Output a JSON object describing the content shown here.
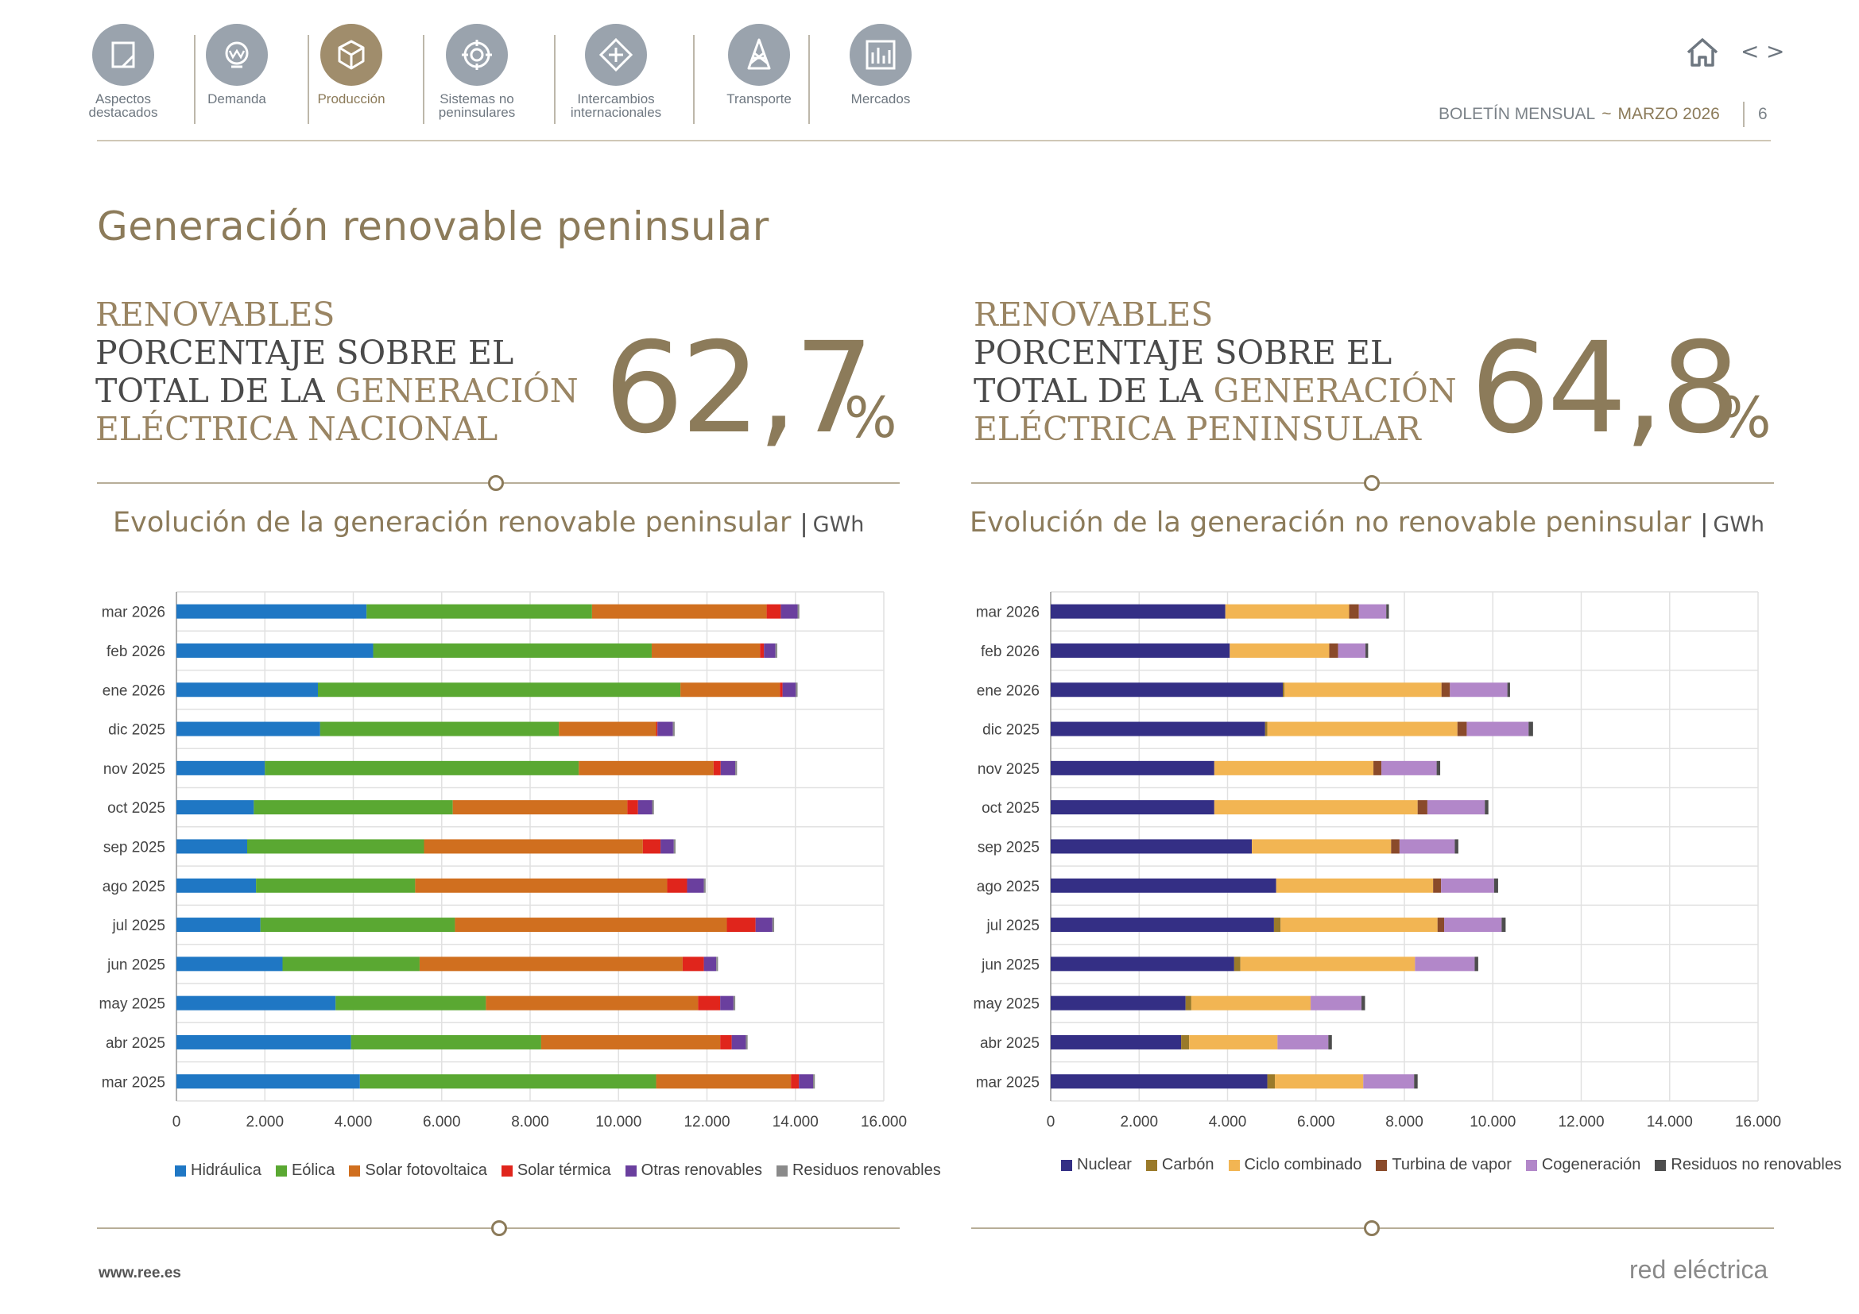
{
  "nav": {
    "items": [
      {
        "label_1": "Aspectos",
        "label_2": "destacados",
        "icon": "document-icon",
        "active": false
      },
      {
        "label_1": "Demanda",
        "label_2": "",
        "icon": "lightbulb-icon",
        "active": false
      },
      {
        "label_1": "Producción",
        "label_2": "",
        "icon": "cube-icon",
        "active": true
      },
      {
        "label_1": "Sistemas no",
        "label_2": "peninsulares",
        "icon": "islands-icon",
        "active": false
      },
      {
        "label_1": "Intercambios",
        "label_2": "internacionales",
        "icon": "exchange-icon",
        "active": false
      },
      {
        "label_1": "Transporte",
        "label_2": "",
        "icon": "tower-icon",
        "active": false
      },
      {
        "label_1": "Mercados",
        "label_2": "",
        "icon": "bar-chart-icon",
        "active": false
      }
    ]
  },
  "header": {
    "bulletin": "BOLETÍN MENSUAL",
    "separator": "~",
    "month": "MARZO 2026",
    "page_number": "6",
    "prev": "<",
    "next": ">"
  },
  "title": "Generación renovable peninsular",
  "kpi_left": {
    "line1": "RENOVABLES",
    "line2": "PORCENTAJE SOBRE EL",
    "line3a": "TOTAL DE LA ",
    "line3b": "GENERACIÓN",
    "line4": "ELÉCTRICA NACIONAL",
    "value": "62,7",
    "unit": "%"
  },
  "kpi_right": {
    "line1": "RENOVABLES",
    "line2": "PORCENTAJE SOBRE EL",
    "line3a": "TOTAL DE LA ",
    "line3b": "GENERACIÓN",
    "line4": "ELÉCTRICA PENINSULAR",
    "value": "64,8",
    "unit": "%"
  },
  "chart_left_title": {
    "text": "Evolución de la generación renovable peninsular",
    "separator": "|",
    "unit": "GWh"
  },
  "chart_right_title": {
    "text": "Evolución de la generación no renovable peninsular",
    "separator": "|",
    "unit": "GWh"
  },
  "colors": {
    "Hidráulica": "#1f77c4",
    "Eólica": "#5aa832",
    "Solar fotovoltaica": "#d06f1f",
    "Solar térmica": "#e0251c",
    "Otras renovables": "#6a3f9e",
    "Residuos renovables": "#8a8a8a",
    "Nuclear": "#342f85",
    "Carbón": "#9a7a2a",
    "Ciclo combinado": "#f2b553",
    "Turbina de vapor": "#8a4a2a",
    "Cogeneración": "#b287c9",
    "Residuos no renovables": "#4d4d4d"
  },
  "chart_data": [
    {
      "type": "bar",
      "orientation": "horizontal",
      "stacked": true,
      "title": "Evolución de la generación renovable peninsular",
      "unit": "GWh",
      "categories": [
        "mar 2026",
        "feb 2026",
        "ene 2026",
        "dic 2025",
        "nov 2025",
        "oct 2025",
        "sep 2025",
        "ago 2025",
        "jul 2025",
        "jun 2025",
        "may 2025",
        "abr 2025",
        "mar 2025"
      ],
      "xlim": [
        0,
        16000
      ],
      "xticks": [
        0,
        2000,
        4000,
        6000,
        8000,
        10000,
        12000,
        14000,
        16000
      ],
      "xtick_labels": [
        "0",
        "2.000",
        "4.000",
        "6.000",
        "8.000",
        "10.000",
        "12.000",
        "14.000",
        "16.000"
      ],
      "series": [
        {
          "name": "Hidráulica",
          "values": [
            4300,
            4450,
            3200,
            3250,
            2000,
            1750,
            1600,
            1800,
            1900,
            2400,
            3600,
            3950,
            4150
          ]
        },
        {
          "name": "Eólica",
          "values": [
            5100,
            6300,
            8200,
            5400,
            7100,
            4500,
            4000,
            3600,
            4400,
            3100,
            3400,
            4300,
            6700
          ]
        },
        {
          "name": "Solar fotovoltaica",
          "values": [
            3950,
            2450,
            2250,
            2200,
            3050,
            3950,
            4950,
            5700,
            6150,
            5950,
            4800,
            4050,
            3050
          ]
        },
        {
          "name": "Solar térmica",
          "values": [
            320,
            90,
            60,
            30,
            160,
            240,
            400,
            450,
            650,
            480,
            500,
            260,
            180
          ]
        },
        {
          "name": "Otras renovables",
          "values": [
            380,
            260,
            300,
            350,
            330,
            320,
            300,
            380,
            380,
            280,
            300,
            320,
            320
          ]
        },
        {
          "name": "Residuos renovables",
          "values": [
            40,
            40,
            40,
            40,
            40,
            40,
            40,
            40,
            40,
            40,
            40,
            40,
            40
          ]
        }
      ]
    },
    {
      "type": "bar",
      "orientation": "horizontal",
      "stacked": true,
      "title": "Evolución de la generación no renovable peninsular",
      "unit": "GWh",
      "categories": [
        "mar 2026",
        "feb 2026",
        "ene 2026",
        "dic 2025",
        "nov 2025",
        "oct 2025",
        "sep 2025",
        "ago 2025",
        "jul 2025",
        "jun 2025",
        "may 2025",
        "abr 2025",
        "mar 2025"
      ],
      "xlim": [
        0,
        16000
      ],
      "xticks": [
        0,
        2000,
        4000,
        6000,
        8000,
        10000,
        12000,
        14000,
        16000
      ],
      "xtick_labels": [
        "0",
        "2.000",
        "4.000",
        "6.000",
        "8.000",
        "10.000",
        "12.000",
        "14.000",
        "16.000"
      ],
      "series": [
        {
          "name": "Nuclear",
          "values": [
            3950,
            4050,
            5250,
            4850,
            3700,
            3700,
            4550,
            5100,
            5050,
            4150,
            3050,
            2950,
            4900
          ]
        },
        {
          "name": "Carbón",
          "values": [
            0,
            0,
            40,
            50,
            0,
            0,
            0,
            0,
            150,
            140,
            130,
            180,
            170
          ]
        },
        {
          "name": "Ciclo combinado",
          "values": [
            2800,
            2250,
            3550,
            4300,
            3600,
            4600,
            3150,
            3550,
            3550,
            3950,
            2700,
            2000,
            2000
          ]
        },
        {
          "name": "Turbina de vapor",
          "values": [
            220,
            200,
            190,
            210,
            180,
            220,
            190,
            180,
            150,
            0,
            0,
            0,
            0
          ]
        },
        {
          "name": "Cogeneración",
          "values": [
            620,
            620,
            1300,
            1400,
            1250,
            1300,
            1250,
            1200,
            1300,
            1350,
            1150,
            1150,
            1150
          ]
        },
        {
          "name": "Residuos no renovables",
          "values": [
            60,
            60,
            60,
            100,
            80,
            80,
            80,
            90,
            90,
            80,
            80,
            80,
            80
          ]
        }
      ]
    }
  ],
  "legend_left": [
    "Hidráulica",
    "Eólica",
    "Solar fotovoltaica",
    "Solar térmica",
    "Otras renovables",
    "Residuos renovables"
  ],
  "legend_right": [
    "Nuclear",
    "Carbón",
    "Ciclo combinado",
    "Turbina de vapor",
    "Cogeneración",
    "Residuos no renovables"
  ],
  "footer": {
    "url": "www.ree.es",
    "brand": "red eléctrica"
  }
}
